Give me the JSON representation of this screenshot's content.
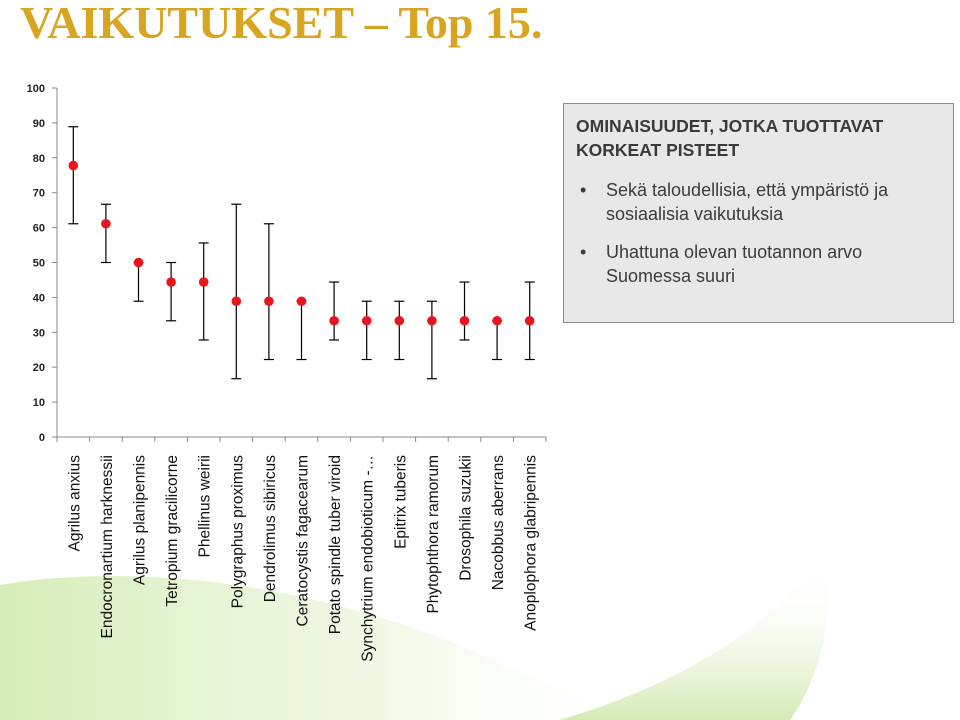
{
  "slide": {
    "title": "VAIKUTUKSET – Top 15."
  },
  "infobox": {
    "heading": "OMINAISUUDET, JOTKA TUOTTAVAT KORKEAT PISTEET",
    "bullets": [
      "Sekä taloudellisia, että ympäristö ja sosiaalisia vaikutuksia",
      "Uhattuna olevan tuotannon arvo Suomessa suuri"
    ]
  },
  "chart_data": {
    "type": "scatter",
    "categories": [
      "Agrilus anxius",
      "Endocronartium harknessii",
      "Agrilus planipennis",
      "Tetropium gracilicorne",
      "Phellinus weirii",
      "Polygraphus proximus",
      "Dendrolimus sibiricus",
      "Ceratocystis fagacearum",
      "Potato spindle tuber viroid",
      "Synchytrium endobioticum -…",
      "Epitrix tuberis",
      "Phytophthora ramorum",
      "Drosophila suzukii",
      "Nacobbus aberrans",
      "Anoplophora glabripennis"
    ],
    "values": [
      77.8,
      61.1,
      50,
      44.4,
      44.4,
      38.9,
      38.9,
      38.9,
      33.3,
      33.3,
      33.3,
      33.3,
      33.3,
      33.3,
      33.3
    ],
    "error_low": [
      61.1,
      50,
      38.9,
      33.3,
      27.8,
      16.7,
      22.2,
      22.2,
      27.8,
      22.2,
      22.2,
      16.7,
      27.8,
      22.2,
      22.2
    ],
    "error_high": [
      88.9,
      66.7,
      50,
      50,
      55.6,
      66.7,
      61.1,
      38.9,
      44.4,
      38.9,
      38.9,
      38.9,
      44.4,
      33.3,
      44.4
    ],
    "ylim": [
      0,
      100
    ],
    "yticks": [
      "0",
      "10",
      "20",
      "30",
      "40",
      "50",
      "60",
      "70",
      "80",
      "90",
      "100"
    ],
    "grid": false,
    "marker_color": "#e8151b",
    "errorbar_color": "#000000"
  },
  "colors": {
    "title": "#d8a520",
    "infobox_bg": "#e8e8e8",
    "infobox_border": "#8c8c8c",
    "decor_green": "#c6e3a4"
  }
}
